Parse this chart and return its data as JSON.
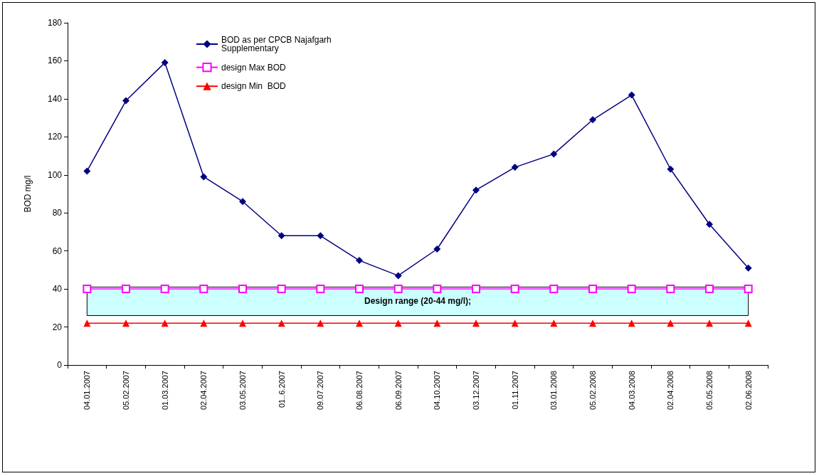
{
  "chart_data": {
    "type": "line",
    "ylabel": "BOD mg/l",
    "categories": [
      "04.01.2007",
      "05.02.2007",
      "01.03.2007",
      "02.04.2007",
      "03.05.2007",
      "01..6.2007",
      "09.07.2007",
      "06.08.2007",
      "06.09.2007",
      "04.10.2007",
      "03.12.2007",
      "01.11.2007",
      "03.01.2008",
      "05.02.2008",
      "04.03.2008",
      "02.04.2008",
      "05.05.2008",
      "02.06.2008"
    ],
    "series": [
      {
        "name": "BOD as per CPCB Najafgarh Supplementary",
        "color": "#000080",
        "marker": "diamond",
        "values": [
          102,
          139,
          159,
          99,
          86,
          68,
          68,
          55,
          47,
          61,
          92,
          104,
          111,
          129,
          142,
          103,
          74,
          51
        ]
      },
      {
        "name": "design Max BOD",
        "color": "#ff00ff",
        "marker": "square",
        "values": [
          40,
          40,
          40,
          40,
          40,
          40,
          40,
          40,
          40,
          40,
          40,
          40,
          40,
          40,
          40,
          40,
          40,
          40
        ]
      },
      {
        "name": "design Min  BOD",
        "color": "#ff0000",
        "marker": "triangle",
        "values": [
          22,
          22,
          22,
          22,
          22,
          22,
          22,
          22,
          22,
          22,
          22,
          22,
          22,
          22,
          22,
          22,
          22,
          22
        ]
      }
    ],
    "bands": [
      {
        "axis": "y",
        "from": 26,
        "to": 41,
        "label": "Design range (20-44 mg/l);",
        "color": "#ccffff"
      }
    ],
    "ylim": [
      0,
      180
    ],
    "yticks": [
      0,
      20,
      40,
      60,
      80,
      100,
      120,
      140,
      160,
      180
    ],
    "grid": false,
    "legend": "top left",
    "line_style": "solid"
  }
}
